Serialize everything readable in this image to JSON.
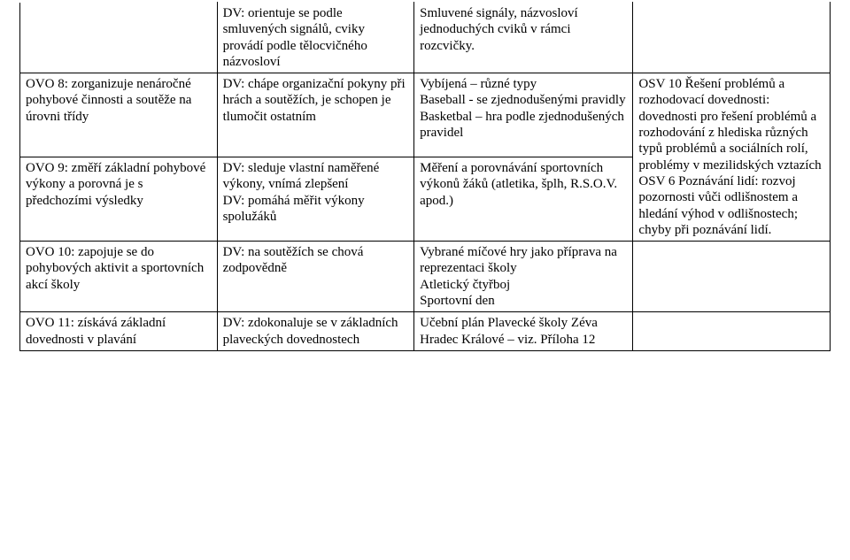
{
  "row0": {
    "col1": "",
    "col2": "DV: orientuje se podle smluvených signálů, cviky provádí podle tělocvičného názvosloví",
    "col3": "Smluvené signály, názvosloví jednoduchých cviků v rámci rozcvičky.",
    "col4": ""
  },
  "row1a": {
    "col1": "OVO 8: zorganizuje nenáročné pohybové činnosti a soutěže na úrovni třídy",
    "col2": "DV: chápe organizační pokyny při hrách a soutěžích, je schopen je tlumočit ostatním",
    "col3": "Vybíjená – různé typy\nBaseball - se zjednodušenými pravidly\nBasketbal – hra podle zjednodušených pravidel",
    "col4": "OSV 10 Řešení problémů a rozhodovací dovednosti: dovednosti pro řešení problémů a rozhodování z hlediska různých typů problémů a sociálních rolí, problémy v mezilidských vztazích\nOSV 6 Poznávání lidí: rozvoj pozornosti vůči odlišnostem a hledání výhod v odlišnostech; chyby při poznávání lidí."
  },
  "row1b": {
    "col1": "OVO 9: změří základní pohybové výkony a porovná je s předchozími výsledky",
    "col2": "DV: sleduje vlastní naměřené výkony, vnímá zlepšení\nDV:  pomáhá měřit výkony spolužáků",
    "col3": "Měření a porovnávání sportovních výkonů žáků (atletika, šplh, R.S.O.V. apod.)"
  },
  "row2": {
    "col1": "OVO 10: zapojuje se do pohybových aktivit a sportovních akcí školy",
    "col2": "DV: na soutěžích se chová zodpovědně",
    "col3": "Vybrané míčové hry jako příprava na reprezentaci  školy\nAtletický čtyřboj\nSportovní den",
    "col4": ""
  },
  "row3": {
    "col1": "OVO 11: získává základní dovednosti v plavání",
    "col2": "DV: zdokonaluje se v základních plaveckých dovednostech",
    "col3": "Učební plán Plavecké školy Zéva Hradec Králové – viz. Příloha 12",
    "col4": ""
  }
}
